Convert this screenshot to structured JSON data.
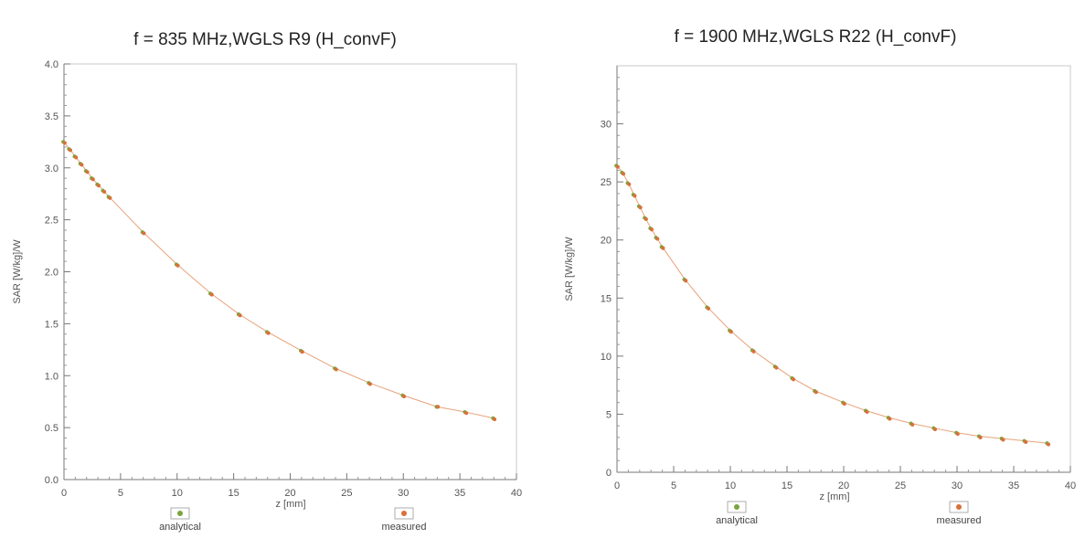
{
  "chart_data": [
    {
      "type": "scatter",
      "title": "f = 835 MHz,WGLS R9 (H_convF)",
      "xlabel": "z [mm]",
      "ylabel": "SAR [W/kg]/W",
      "xlim": [
        0,
        40
      ],
      "ylim": [
        0,
        4
      ],
      "x_ticks": [
        "0",
        "5",
        "10",
        "15",
        "20",
        "25",
        "30",
        "35",
        "40"
      ],
      "y_ticks": [
        "0.0",
        "0.5",
        "1.0",
        "1.5",
        "2.0",
        "2.5",
        "3.0",
        "3.5",
        "4.0"
      ],
      "grid": false,
      "legend": [
        "analytical",
        "measured"
      ],
      "legend_position": "bottom",
      "series": [
        {
          "name": "analytical",
          "color": "#7aa53c",
          "x": [
            0,
            0.5,
            1,
            1.5,
            2,
            2.5,
            3,
            3.5,
            4,
            7,
            10,
            13,
            15.5,
            18,
            21,
            24,
            27,
            30,
            33,
            35.5,
            38
          ],
          "y": [
            3.25,
            3.18,
            3.11,
            3.04,
            2.97,
            2.9,
            2.84,
            2.78,
            2.72,
            2.38,
            2.07,
            1.79,
            1.59,
            1.42,
            1.24,
            1.07,
            0.93,
            0.81,
            0.7,
            0.65,
            0.59
          ]
        },
        {
          "name": "measured",
          "color": "#d9703a",
          "x": [
            0,
            0.5,
            1,
            1.5,
            2,
            2.5,
            3,
            3.5,
            4,
            7,
            10,
            13,
            15.5,
            18,
            21,
            24,
            27,
            30,
            33,
            35.5,
            38
          ],
          "y": [
            3.24,
            3.17,
            3.1,
            3.03,
            2.96,
            2.89,
            2.83,
            2.77,
            2.71,
            2.37,
            2.06,
            1.78,
            1.58,
            1.41,
            1.23,
            1.06,
            0.92,
            0.8,
            0.7,
            0.64,
            0.58
          ]
        }
      ]
    },
    {
      "type": "scatter",
      "title": "f = 1900 MHz,WGLS R22 (H_convF)",
      "xlabel": "z [mm]",
      "ylabel": "SAR [W/kg]/W",
      "xlim": [
        0,
        40
      ],
      "ylim": [
        0,
        35
      ],
      "x_ticks": [
        "0",
        "5",
        "10",
        "15",
        "20",
        "25",
        "30",
        "35",
        "40"
      ],
      "y_ticks": [
        "0",
        "5",
        "10",
        "15",
        "20",
        "25",
        "30"
      ],
      "grid": false,
      "legend": [
        "analytical",
        "measured"
      ],
      "legend_position": "bottom",
      "series": [
        {
          "name": "analytical",
          "color": "#7aa53c",
          "x": [
            0,
            0.5,
            1,
            1.5,
            2,
            2.5,
            3,
            3.5,
            4,
            6,
            8,
            10,
            12,
            14,
            15.5,
            17.5,
            20,
            22,
            24,
            26,
            28,
            30,
            32,
            34,
            36,
            38
          ],
          "y": [
            26.4,
            25.8,
            24.9,
            23.9,
            22.9,
            21.9,
            21.0,
            20.2,
            19.4,
            16.6,
            14.2,
            12.2,
            10.5,
            9.1,
            8.1,
            7.0,
            6.0,
            5.3,
            4.7,
            4.2,
            3.8,
            3.4,
            3.1,
            2.9,
            2.7,
            2.5
          ]
        },
        {
          "name": "measured",
          "color": "#d9703a",
          "x": [
            0,
            0.5,
            1,
            1.5,
            2,
            2.5,
            3,
            3.5,
            4,
            6,
            8,
            10,
            12,
            14,
            15.5,
            17.5,
            20,
            22,
            24,
            26,
            28,
            30,
            32,
            34,
            36,
            38
          ],
          "y": [
            26.3,
            25.7,
            24.8,
            23.8,
            22.8,
            21.8,
            20.9,
            20.1,
            19.3,
            16.5,
            14.1,
            12.1,
            10.4,
            9.0,
            8.0,
            6.9,
            5.9,
            5.2,
            4.6,
            4.1,
            3.7,
            3.3,
            3.0,
            2.8,
            2.6,
            2.4
          ]
        }
      ]
    }
  ]
}
